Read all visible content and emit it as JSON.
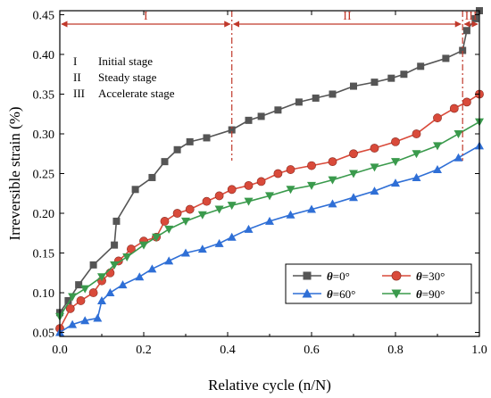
{
  "chart_data": {
    "type": "line",
    "xlabel": "Relative cycle (n/N)",
    "ylabel": "Irreversible strain (%)",
    "xlim": [
      0.0,
      1.0
    ],
    "ylim": [
      0.045,
      0.455
    ],
    "xticks": [
      "0.0",
      "0.2",
      "0.4",
      "0.6",
      "0.8",
      "1.0"
    ],
    "yticks": [
      "0.05",
      "0.10",
      "0.15",
      "0.20",
      "0.25",
      "0.30",
      "0.35",
      "0.40",
      "0.45"
    ],
    "xtick_values": [
      0.0,
      0.2,
      0.4,
      0.6,
      0.8,
      1.0
    ],
    "ytick_values": [
      0.05,
      0.1,
      0.15,
      0.2,
      0.25,
      0.3,
      0.35,
      0.4,
      0.45
    ],
    "legend_position": "lower-right",
    "stages": {
      "boundaries": [
        0.41,
        0.96
      ],
      "labels": [
        "I",
        "II",
        "III"
      ],
      "legend": [
        {
          "roman": "I",
          "text": "Initial stage"
        },
        {
          "roman": "II",
          "text": "Steady stage"
        },
        {
          "roman": "III",
          "text": "Accelerate stage"
        }
      ]
    },
    "series": [
      {
        "name": "θ=0°",
        "symbol": "θ",
        "suffix": "=0°",
        "marker": "square",
        "color": "#555555",
        "x": [
          0.0,
          0.02,
          0.045,
          0.08,
          0.13,
          0.135,
          0.18,
          0.22,
          0.25,
          0.28,
          0.31,
          0.35,
          0.41,
          0.45,
          0.48,
          0.52,
          0.57,
          0.61,
          0.65,
          0.7,
          0.75,
          0.79,
          0.82,
          0.86,
          0.92,
          0.96,
          0.97,
          0.99,
          1.0
        ],
        "y": [
          0.075,
          0.09,
          0.11,
          0.135,
          0.16,
          0.19,
          0.23,
          0.245,
          0.265,
          0.28,
          0.29,
          0.295,
          0.305,
          0.317,
          0.322,
          0.33,
          0.34,
          0.345,
          0.35,
          0.36,
          0.365,
          0.37,
          0.375,
          0.385,
          0.395,
          0.405,
          0.43,
          0.445,
          0.455
        ]
      },
      {
        "name": "θ=30°",
        "symbol": "θ",
        "suffix": "=30°",
        "marker": "circle",
        "color": "#d94a3a",
        "x": [
          0.0,
          0.025,
          0.05,
          0.08,
          0.1,
          0.12,
          0.14,
          0.17,
          0.2,
          0.23,
          0.25,
          0.28,
          0.31,
          0.35,
          0.38,
          0.41,
          0.45,
          0.48,
          0.52,
          0.55,
          0.6,
          0.65,
          0.7,
          0.75,
          0.8,
          0.85,
          0.9,
          0.94,
          0.97,
          1.0
        ],
        "y": [
          0.055,
          0.08,
          0.09,
          0.1,
          0.115,
          0.125,
          0.14,
          0.155,
          0.165,
          0.17,
          0.19,
          0.2,
          0.205,
          0.215,
          0.222,
          0.23,
          0.235,
          0.24,
          0.25,
          0.255,
          0.26,
          0.265,
          0.275,
          0.282,
          0.29,
          0.3,
          0.32,
          0.332,
          0.34,
          0.35
        ]
      },
      {
        "name": "θ=60°",
        "symbol": "θ",
        "suffix": "=60°",
        "marker": "triangle-up",
        "color": "#2f6fd6",
        "x": [
          0.0,
          0.03,
          0.06,
          0.09,
          0.1,
          0.12,
          0.15,
          0.19,
          0.22,
          0.26,
          0.3,
          0.34,
          0.38,
          0.41,
          0.45,
          0.5,
          0.55,
          0.6,
          0.65,
          0.7,
          0.75,
          0.8,
          0.85,
          0.9,
          0.95,
          1.0
        ],
        "y": [
          0.05,
          0.06,
          0.065,
          0.068,
          0.09,
          0.1,
          0.11,
          0.12,
          0.13,
          0.14,
          0.15,
          0.155,
          0.162,
          0.17,
          0.18,
          0.19,
          0.198,
          0.205,
          0.212,
          0.22,
          0.228,
          0.238,
          0.245,
          0.255,
          0.27,
          0.285
        ]
      },
      {
        "name": "θ=90°",
        "symbol": "θ",
        "suffix": "=90°",
        "marker": "triangle-down",
        "color": "#3a9a4c",
        "x": [
          0.0,
          0.03,
          0.06,
          0.1,
          0.13,
          0.16,
          0.2,
          0.23,
          0.26,
          0.3,
          0.34,
          0.38,
          0.41,
          0.45,
          0.5,
          0.55,
          0.6,
          0.65,
          0.7,
          0.75,
          0.8,
          0.85,
          0.9,
          0.95,
          1.0
        ],
        "y": [
          0.07,
          0.095,
          0.105,
          0.12,
          0.135,
          0.145,
          0.16,
          0.17,
          0.18,
          0.19,
          0.198,
          0.205,
          0.21,
          0.215,
          0.222,
          0.23,
          0.235,
          0.242,
          0.25,
          0.258,
          0.265,
          0.275,
          0.285,
          0.3,
          0.315
        ]
      }
    ]
  }
}
